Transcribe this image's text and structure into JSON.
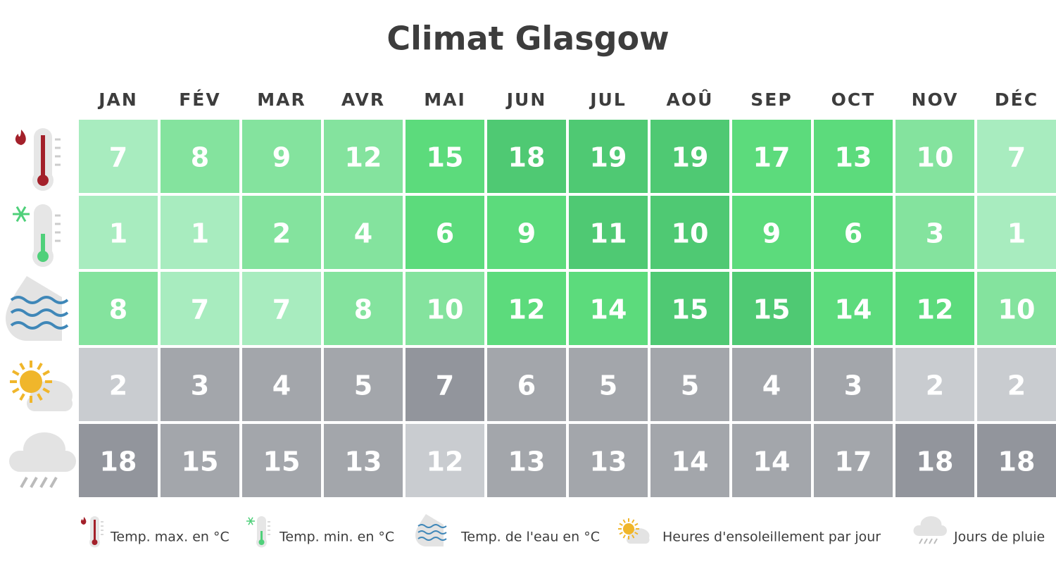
{
  "title": "Climat Glasgow",
  "months": [
    "JAN",
    "FÉV",
    "MAR",
    "AVR",
    "MAI",
    "JUN",
    "JUL",
    "AOÛ",
    "SEP",
    "OCT",
    "NOV",
    "DÉC"
  ],
  "rows": [
    {
      "legend": "Temp. max. en °C",
      "values": [
        7,
        8,
        9,
        12,
        15,
        18,
        19,
        19,
        17,
        13,
        10,
        7
      ]
    },
    {
      "legend": "Temp. min. en °C",
      "values": [
        1,
        1,
        2,
        4,
        6,
        9,
        11,
        10,
        9,
        6,
        3,
        1
      ]
    },
    {
      "legend": "Temp. de l'eau en °C",
      "values": [
        8,
        7,
        7,
        8,
        10,
        12,
        14,
        15,
        15,
        14,
        12,
        10
      ]
    },
    {
      "legend": "Heures d'ensoleillement par jour",
      "values": [
        2,
        3,
        4,
        5,
        7,
        6,
        5,
        5,
        4,
        3,
        2,
        2
      ]
    },
    {
      "legend": "Jours de pluie",
      "values": [
        18,
        15,
        15,
        13,
        12,
        13,
        13,
        14,
        14,
        17,
        18,
        18
      ]
    }
  ]
}
